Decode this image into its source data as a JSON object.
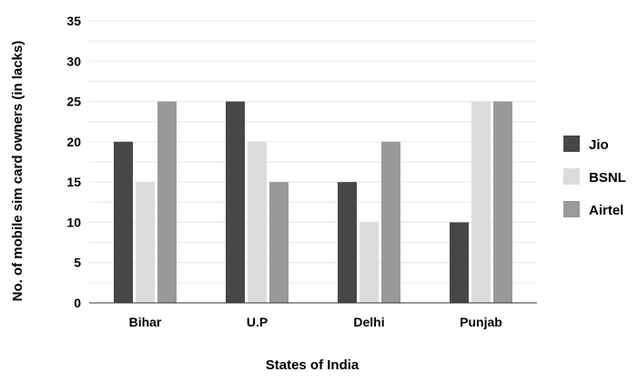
{
  "chart_data": {
    "type": "bar",
    "title": "",
    "xlabel": "States of India",
    "ylabel": "No. of mobile sim card owners (in lacks)",
    "categories": [
      "Bihar",
      "U.P",
      "Delhi",
      "Punjab"
    ],
    "series": [
      {
        "name": "Jio",
        "values": [
          20,
          25,
          15,
          10
        ],
        "color": "#474747"
      },
      {
        "name": "BSNL",
        "values": [
          15,
          20,
          10,
          25
        ],
        "color": "#dcdcdc"
      },
      {
        "name": "Airtel",
        "values": [
          25,
          15,
          20,
          25
        ],
        "color": "#9a9a9a"
      }
    ],
    "ylim": [
      0,
      35
    ],
    "yticks": [
      "0",
      "5",
      "10",
      "15",
      "20",
      "25",
      "30",
      "35"
    ],
    "grid": true,
    "legend_position": "right"
  }
}
